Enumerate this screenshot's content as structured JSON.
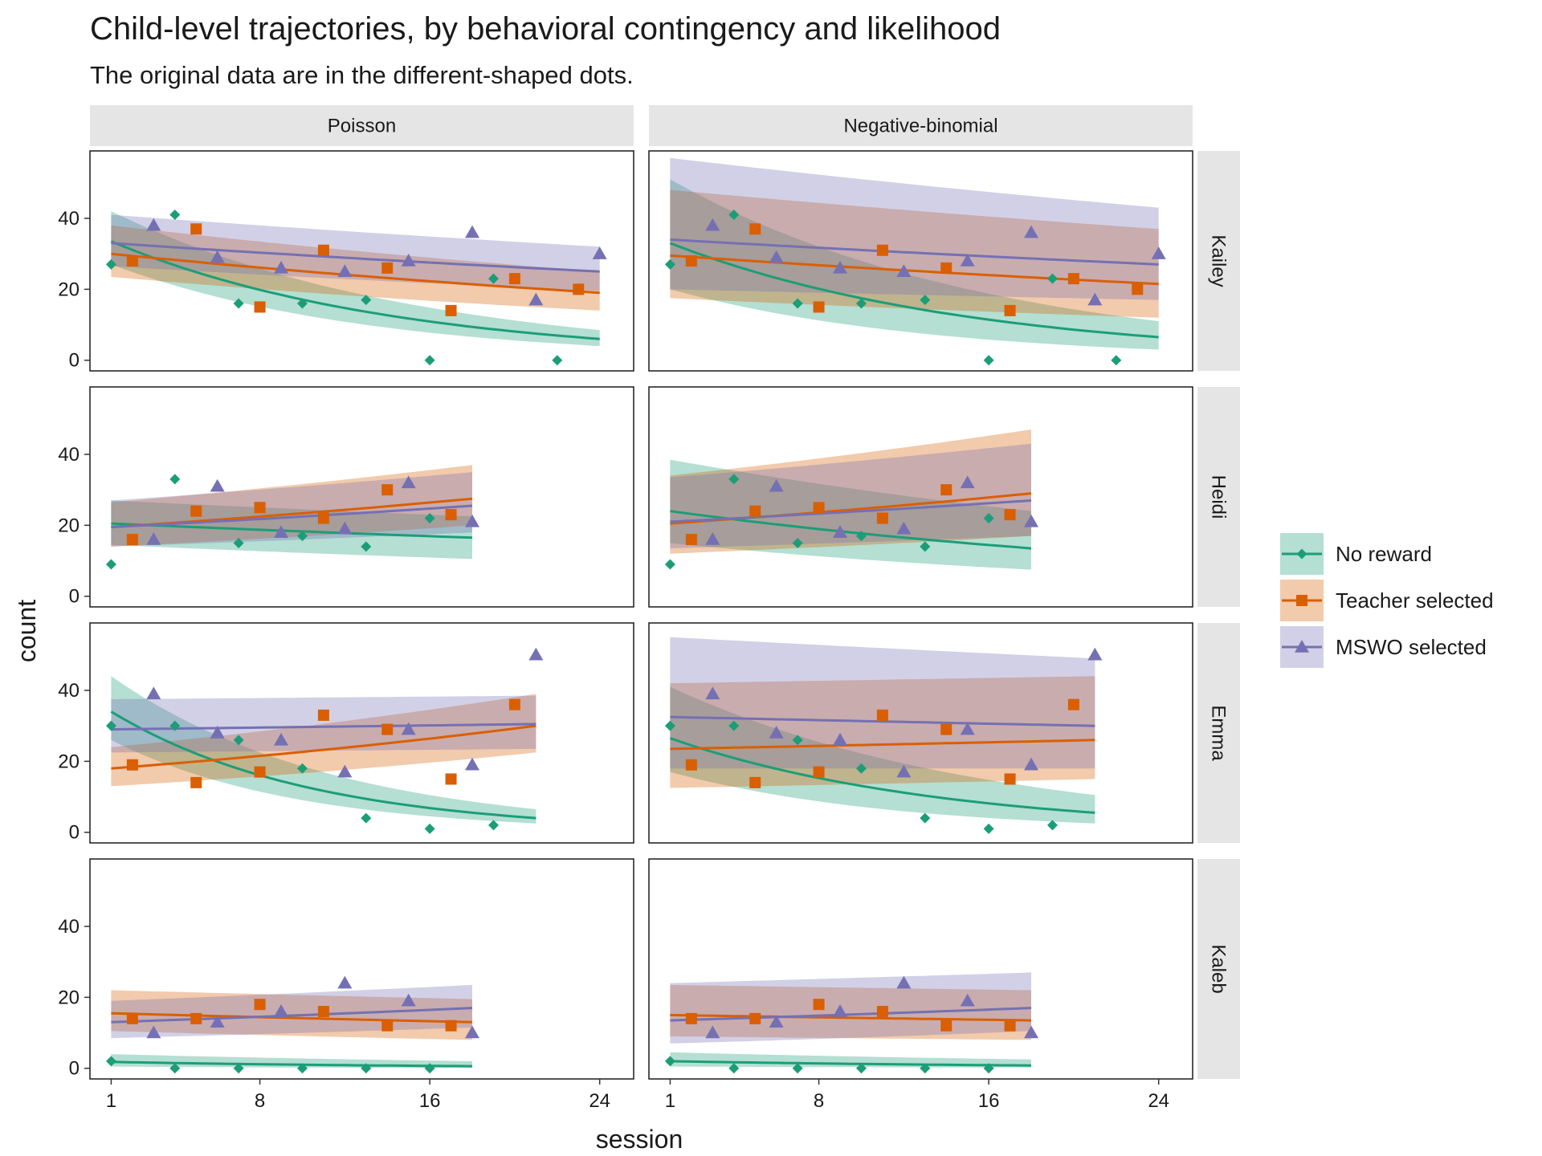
{
  "chart_data": {
    "type": "line",
    "title": "Child-level trajectories, by behavioral contingency and likelihood",
    "subtitle": "The original data are in the different-shaped dots.",
    "xlabel": "session",
    "ylabel": "count",
    "xlim": [
      0,
      25.6
    ],
    "ylim": [
      -3,
      59
    ],
    "x_ticks": [
      1,
      8,
      16,
      24
    ],
    "y_ticks": [
      0,
      20,
      40
    ],
    "grid": false,
    "legend_position": "right",
    "columns": [
      "Poisson",
      "Negative-binomial"
    ],
    "rows": [
      "Kailey",
      "Heidi",
      "Emma",
      "Kaleb"
    ],
    "series": [
      {
        "key": "nr",
        "name": "No reward",
        "color": "#1b9e77",
        "shape": "diamond"
      },
      {
        "key": "ts",
        "name": "Teacher selected",
        "color": "#d95f02",
        "shape": "square"
      },
      {
        "key": "ms",
        "name": "MSWO selected",
        "color": "#7570b3",
        "shape": "triangle"
      }
    ],
    "observations": {
      "Kailey": {
        "nr": [
          [
            1,
            27
          ],
          [
            4,
            41
          ],
          [
            7,
            16
          ],
          [
            10,
            16
          ],
          [
            13,
            17
          ],
          [
            16,
            0
          ],
          [
            19,
            23
          ],
          [
            22,
            0
          ]
        ],
        "ts": [
          [
            2,
            28
          ],
          [
            5,
            37
          ],
          [
            8,
            15
          ],
          [
            11,
            31
          ],
          [
            14,
            26
          ],
          [
            17,
            14
          ],
          [
            20,
            23
          ],
          [
            23,
            20
          ]
        ],
        "ms": [
          [
            3,
            38
          ],
          [
            6,
            29
          ],
          [
            9,
            26
          ],
          [
            12,
            25
          ],
          [
            15,
            28
          ],
          [
            18,
            36
          ],
          [
            21,
            17
          ],
          [
            24,
            30
          ]
        ]
      },
      "Heidi": {
        "nr": [
          [
            1,
            9
          ],
          [
            4,
            33
          ],
          [
            7,
            15
          ],
          [
            10,
            17
          ],
          [
            13,
            14
          ],
          [
            16,
            22
          ]
        ],
        "ts": [
          [
            2,
            16
          ],
          [
            5,
            24
          ],
          [
            8,
            25
          ],
          [
            11,
            22
          ],
          [
            14,
            30
          ],
          [
            17,
            23
          ]
        ],
        "ms": [
          [
            3,
            16
          ],
          [
            6,
            31
          ],
          [
            9,
            18
          ],
          [
            12,
            19
          ],
          [
            15,
            32
          ],
          [
            18,
            21
          ]
        ]
      },
      "Emma": {
        "nr": [
          [
            1,
            30
          ],
          [
            4,
            30
          ],
          [
            7,
            26
          ],
          [
            10,
            18
          ],
          [
            13,
            4
          ],
          [
            16,
            1
          ],
          [
            19,
            2
          ]
        ],
        "ts": [
          [
            2,
            19
          ],
          [
            5,
            14
          ],
          [
            8,
            17
          ],
          [
            11,
            33
          ],
          [
            14,
            29
          ],
          [
            17,
            15
          ],
          [
            20,
            36
          ]
        ],
        "ms": [
          [
            3,
            39
          ],
          [
            6,
            28
          ],
          [
            9,
            26
          ],
          [
            12,
            17
          ],
          [
            15,
            29
          ],
          [
            18,
            19
          ],
          [
            21,
            50
          ]
        ]
      },
      "Kaleb": {
        "nr": [
          [
            1,
            2
          ],
          [
            4,
            0
          ],
          [
            7,
            0
          ],
          [
            10,
            0
          ],
          [
            13,
            0
          ],
          [
            16,
            0
          ]
        ],
        "ts": [
          [
            2,
            14
          ],
          [
            5,
            14
          ],
          [
            8,
            18
          ],
          [
            11,
            16
          ],
          [
            14,
            12
          ],
          [
            17,
            12
          ]
        ],
        "ms": [
          [
            3,
            10
          ],
          [
            6,
            13
          ],
          [
            9,
            16
          ],
          [
            12,
            24
          ],
          [
            15,
            19
          ],
          [
            18,
            10
          ]
        ]
      }
    },
    "fits": {
      "Poisson": {
        "Kailey": {
          "nr": {
            "x": [
              1,
              24
            ],
            "y": [
              33.5,
              6
            ],
            "lo": [
              27,
              4
            ],
            "hi": [
              42,
              8.5
            ]
          },
          "ts": {
            "x": [
              1,
              24
            ],
            "y": [
              30,
              19
            ],
            "lo": [
              23.5,
              14
            ],
            "hi": [
              38,
              25
            ]
          },
          "ms": {
            "x": [
              1,
              24
            ],
            "y": [
              33,
              25
            ],
            "lo": [
              26.5,
              19.5
            ],
            "hi": [
              41,
              32
            ]
          }
        },
        "Heidi": {
          "nr": {
            "x": [
              1,
              18
            ],
            "y": [
              20.5,
              16.5
            ],
            "lo": [
              14.5,
              10.5
            ],
            "hi": [
              27,
              22.5
            ]
          },
          "ts": {
            "x": [
              1,
              18
            ],
            "y": [
              19.5,
              27.5
            ],
            "lo": [
              14,
              20
            ],
            "hi": [
              26.5,
              37
            ]
          },
          "ms": {
            "x": [
              1,
              18
            ],
            "y": [
              19.5,
              25.5
            ],
            "lo": [
              14,
              18
            ],
            "hi": [
              27,
              35
            ]
          }
        },
        "Emma": {
          "nr": {
            "x": [
              1,
              21
            ],
            "y": [
              34,
              4
            ],
            "lo": [
              26,
              2.5
            ],
            "hi": [
              44,
              6.5
            ]
          },
          "ts": {
            "x": [
              1,
              21
            ],
            "y": [
              18,
              30
            ],
            "lo": [
              13,
              22.5
            ],
            "hi": [
              24,
              39
            ]
          },
          "ms": {
            "x": [
              1,
              21
            ],
            "y": [
              29,
              30.5
            ],
            "lo": [
              22.5,
              23.5
            ],
            "hi": [
              37.5,
              38.5
            ]
          }
        },
        "Kaleb": {
          "nr": {
            "x": [
              1,
              18
            ],
            "y": [
              1.8,
              0.6
            ],
            "lo": [
              0.5,
              0.1
            ],
            "hi": [
              4,
              2
            ]
          },
          "ts": {
            "x": [
              1,
              18
            ],
            "y": [
              15.5,
              13
            ],
            "lo": [
              10.5,
              8
            ],
            "hi": [
              22,
              19.5
            ]
          },
          "ms": {
            "x": [
              1,
              18
            ],
            "y": [
              13,
              17
            ],
            "lo": [
              8.5,
              11.5
            ],
            "hi": [
              19,
              23.5
            ]
          }
        }
      },
      "Negative-binomial": {
        "Kailey": {
          "nr": {
            "x": [
              1,
              24
            ],
            "y": [
              33,
              6.5
            ],
            "lo": [
              20,
              3
            ],
            "hi": [
              51,
              11
            ]
          },
          "ts": {
            "x": [
              1,
              24
            ],
            "y": [
              29.5,
              21.5
            ],
            "lo": [
              17.5,
              12
            ],
            "hi": [
              48,
              37
            ]
          },
          "ms": {
            "x": [
              1,
              24
            ],
            "y": [
              34,
              27
            ],
            "lo": [
              20,
              17
            ],
            "hi": [
              57,
              43
            ]
          }
        },
        "Heidi": {
          "nr": {
            "x": [
              1,
              18
            ],
            "y": [
              24,
              13.5
            ],
            "lo": [
              15,
              7.5
            ],
            "hi": [
              38.5,
              24
            ]
          },
          "ts": {
            "x": [
              1,
              18
            ],
            "y": [
              20.5,
              29
            ],
            "lo": [
              12,
              17
            ],
            "hi": [
              34,
              47
            ]
          },
          "ms": {
            "x": [
              1,
              18
            ],
            "y": [
              21,
              27
            ],
            "lo": [
              13.5,
              17
            ],
            "hi": [
              33.5,
              43
            ]
          }
        },
        "Emma": {
          "nr": {
            "x": [
              1,
              21
            ],
            "y": [
              26.5,
              5.5
            ],
            "lo": [
              17,
              2.5
            ],
            "hi": [
              41,
              10.5
            ]
          },
          "ts": {
            "x": [
              1,
              21
            ],
            "y": [
              23.5,
              26
            ],
            "lo": [
              12.5,
              15
            ],
            "hi": [
              42,
              44
            ]
          },
          "ms": {
            "x": [
              1,
              21
            ],
            "y": [
              32.5,
              30
            ],
            "lo": [
              18,
              18
            ],
            "hi": [
              55,
              49
            ]
          }
        },
        "Kaleb": {
          "nr": {
            "x": [
              1,
              18
            ],
            "y": [
              2,
              0.8
            ],
            "lo": [
              0.5,
              0.2
            ],
            "hi": [
              4.5,
              2.5
            ]
          },
          "ts": {
            "x": [
              1,
              18
            ],
            "y": [
              15,
              13.5
            ],
            "lo": [
              9,
              8
            ],
            "hi": [
              23.5,
              22
            ]
          },
          "ms": {
            "x": [
              1,
              18
            ],
            "y": [
              13.5,
              17
            ],
            "lo": [
              7,
              10.5
            ],
            "hi": [
              24,
              27
            ]
          }
        }
      }
    }
  }
}
